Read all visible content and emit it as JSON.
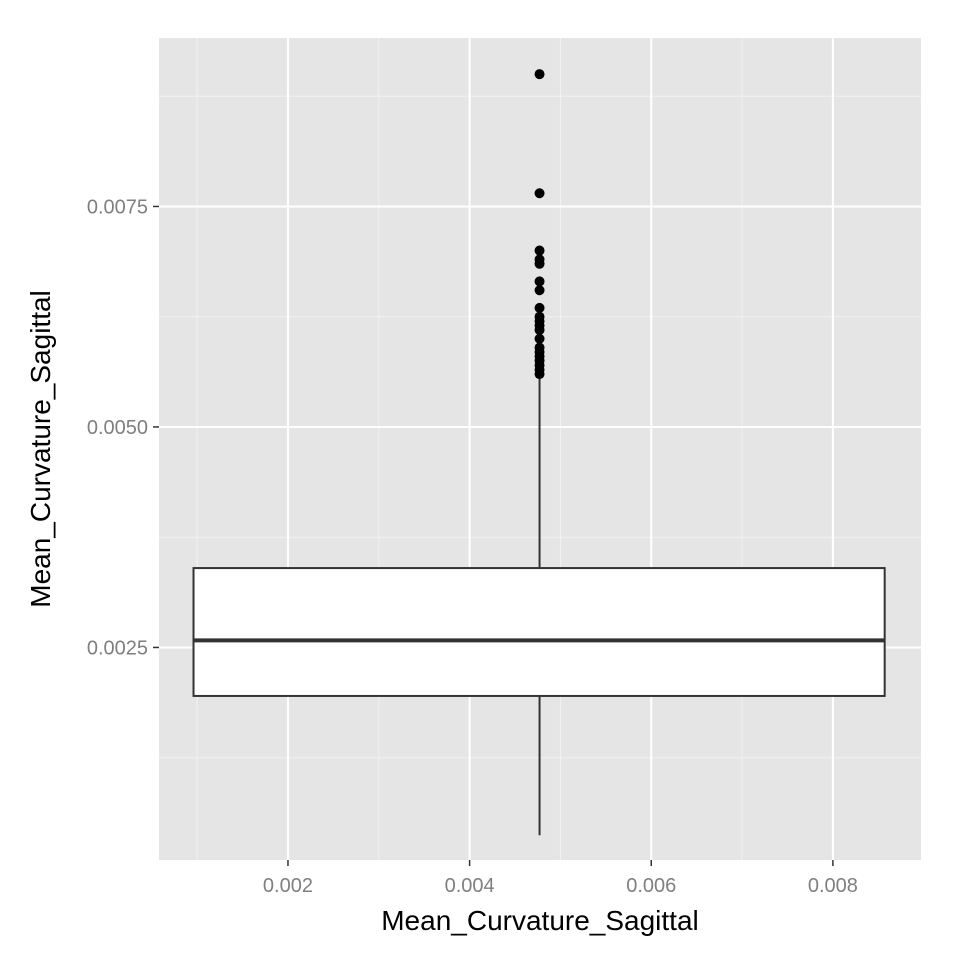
{
  "chart_data": {
    "type": "boxplot",
    "title": "",
    "xlabel": "Mean_Curvature_Sagittal",
    "ylabel": "Mean_Curvature_Sagittal",
    "xlim": [
      0.00058,
      0.00897
    ],
    "ylim": [
      9e-05,
      0.00941
    ],
    "x_ticks": [
      0.002,
      0.004,
      0.006,
      0.008
    ],
    "x_tick_labels": [
      "0.002",
      "0.004",
      "0.006",
      "0.008"
    ],
    "y_ticks": [
      0.0025,
      0.005,
      0.0075
    ],
    "y_tick_labels": [
      "0.0025",
      "0.0050",
      "0.0075"
    ],
    "grid": true,
    "colors": {
      "panel_background": "#e5e5e5",
      "grid_major": "#ffffff",
      "grid_minor": "#f2f2f2",
      "box_fill": "#ffffff",
      "box_line": "#333333",
      "outlier": "#000000",
      "tick_label": "#7f7f7f"
    },
    "box": {
      "x_center": 0.00477,
      "x_min": 0.00096,
      "x_max": 0.00857,
      "q1": 0.00195,
      "median": 0.00258,
      "q3": 0.0034,
      "whisker_low": 0.00037,
      "whisker_high": 0.00558
    },
    "outliers": [
      0.0056,
      0.00565,
      0.0057,
      0.00575,
      0.0058,
      0.00585,
      0.0059,
      0.006,
      0.0061,
      0.00615,
      0.0062,
      0.00625,
      0.00635,
      0.00655,
      0.00665,
      0.00685,
      0.0069,
      0.007,
      0.00765,
      0.009
    ]
  }
}
